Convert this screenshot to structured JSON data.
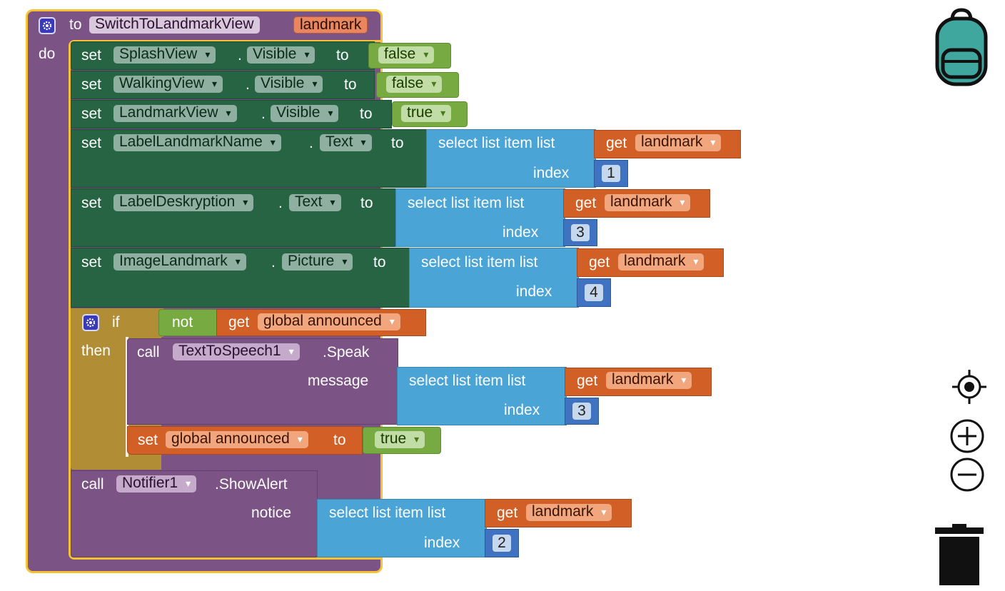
{
  "procedure": {
    "keyword_to": "to",
    "name": "SwitchToLandmarkView",
    "param": "landmark",
    "keyword_do": "do"
  },
  "keywords": {
    "set": "set",
    "to": "to",
    "dot": ".",
    "select_list_item": "select list item  list",
    "index": "index",
    "get": "get",
    "if": "if",
    "then": "then",
    "not": "not",
    "call": "call",
    "message": "message",
    "notice": "notice"
  },
  "statements": [
    {
      "component": "SplashView",
      "property": "Visible",
      "value": "false"
    },
    {
      "component": "WalkingView",
      "property": "Visible",
      "value": "false"
    },
    {
      "component": "LandmarkView",
      "property": "Visible",
      "value": "true"
    },
    {
      "component": "LabelLandmarkName",
      "property": "Text",
      "list_var": "landmark",
      "index": "1"
    },
    {
      "component": "LabelDeskryption",
      "property": "Text",
      "list_var": "landmark",
      "index": "3"
    },
    {
      "component": "ImageLandmark",
      "property": "Picture",
      "list_var": "landmark",
      "index": "4"
    }
  ],
  "if_block": {
    "condition_var": "global announced",
    "speak": {
      "component": "TextToSpeech1",
      "method": ".Speak",
      "list_var": "landmark",
      "index": "3"
    },
    "set_var": "global announced",
    "set_value": "true"
  },
  "alert": {
    "component": "Notifier1",
    "method": ".ShowAlert",
    "list_var": "landmark",
    "index": "2"
  },
  "controls": [
    "backpack-icon",
    "center-icon",
    "zoom-in-icon",
    "zoom-out-icon",
    "trash-icon"
  ],
  "colors": {
    "procedure": "#7c5385",
    "set": "#266443",
    "list": "#4aa4d6",
    "get": "#d25f26",
    "boolean": "#77ab41",
    "number": "#3f72c1",
    "control": "#b18e35",
    "backpack": "#3fa79e"
  }
}
